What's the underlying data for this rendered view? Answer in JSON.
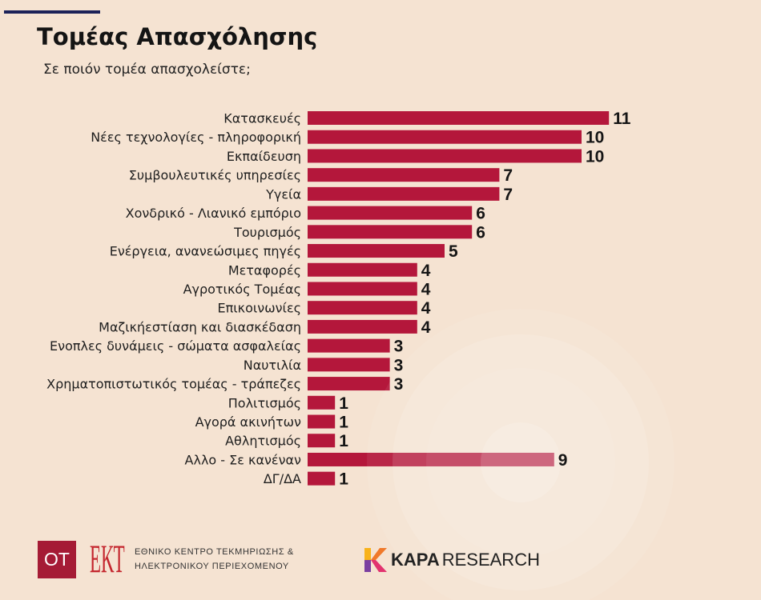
{
  "colors": {
    "background": "#f5e3d2",
    "bar": "#b4173b",
    "accent_line": "#1c2259",
    "ot_logo": "#a51b35",
    "ekt_logo": "#c4262e"
  },
  "chart_data": {
    "type": "bar",
    "orientation": "horizontal",
    "title": "Τομέας Απασχόλησης",
    "subtitle": "Σε ποιόν τομέα απασχολείστε;",
    "xlim": [
      0,
      11
    ],
    "grid": false,
    "data_labels": true,
    "categories": [
      "Κατασκευές",
      "Νέες τεχνολογίες - πληροφορική",
      "Εκπαίδευση",
      "Συμβουλευτικές υπηρεσίες",
      "Υγεία",
      "Χονδρικό - Λιανικό εμπόριο",
      "Τουρισμός",
      "Ενέργεια, ανανεώσιμες πηγές",
      "Μεταφορές",
      "Αγροτικός Τομέας",
      "Επικοινωνίες",
      "Μαζικήεστίαση και διασκέδαση",
      "Ενοπλες δυνάμεις - σώματα ασφαλείας",
      "Ναυτιλία",
      "Χρηματοπιστωτικός τομέας - τράπεζες",
      "Πολιτισμός",
      "Αγορά ακινήτων",
      "Αθλητισμός",
      "Αλλο - Σε κανέναν",
      "ΔΓ/ΔΑ"
    ],
    "values": [
      11,
      10,
      10,
      7,
      7,
      6,
      6,
      5,
      4,
      4,
      4,
      4,
      3,
      3,
      3,
      1,
      1,
      1,
      9,
      1
    ]
  },
  "footer": {
    "ot_logo": "OT",
    "ekt_logo": "ΕΚΤ",
    "ekt_name_line1": "ΕΘΝΙΚΟ ΚΕΝΤΡΟ ΤΕΚΜΗΡΙΩΣΗΣ &",
    "ekt_name_line2": "ΗΛΕΚΤΡΟΝΙΚΟΥ ΠΕΡΙΕΧΟΜΕΝΟΥ",
    "kapa_icon": "kapa-k-icon",
    "kapa_bold": "KAPA",
    "kapa_regular": "RESEARCH"
  }
}
